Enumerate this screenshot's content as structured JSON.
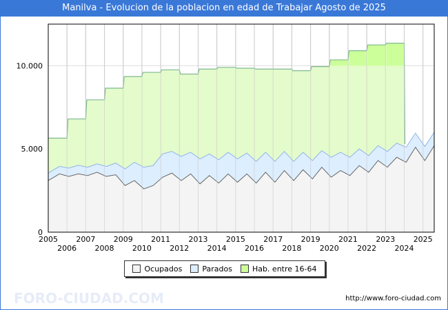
{
  "chart_data": {
    "type": "area",
    "title": "Manilva - Evolucion de la poblacion en edad de Trabajar Agosto de 2025",
    "xlabel": "",
    "ylabel": "",
    "ylim": [
      0,
      12500
    ],
    "xlim": [
      2005,
      2025.6
    ],
    "y_ticks": [
      0,
      5000,
      10000
    ],
    "y_tick_labels": [
      "0",
      "5.000",
      "10.000"
    ],
    "x_ticks": [
      2005,
      2006,
      2007,
      2008,
      2009,
      2010,
      2011,
      2012,
      2013,
      2014,
      2015,
      2016,
      2017,
      2018,
      2019,
      2020,
      2021,
      2022,
      2023,
      2024,
      2025
    ],
    "grid": true,
    "legend_position": "bottom",
    "series": [
      {
        "name": "Ocupados",
        "color": "#f4f4f4",
        "line": "#666666",
        "x": [
          2005.0,
          2005.6,
          2006.1,
          2006.6,
          2007.1,
          2007.6,
          2008.1,
          2008.6,
          2009.1,
          2009.6,
          2010.1,
          2010.6,
          2011.1,
          2011.6,
          2012.1,
          2012.6,
          2013.1,
          2013.6,
          2014.1,
          2014.6,
          2015.1,
          2015.6,
          2016.1,
          2016.6,
          2017.1,
          2017.6,
          2018.1,
          2018.6,
          2019.1,
          2019.6,
          2020.1,
          2020.6,
          2021.1,
          2021.6,
          2022.1,
          2022.6,
          2023.1,
          2023.6,
          2024.1,
          2024.6,
          2025.1,
          2025.6
        ],
        "values": [
          3100,
          3500,
          3350,
          3500,
          3400,
          3600,
          3350,
          3450,
          2800,
          3100,
          2600,
          2800,
          3300,
          3550,
          3100,
          3500,
          2900,
          3400,
          2950,
          3500,
          3000,
          3500,
          2950,
          3600,
          3000,
          3700,
          3100,
          3750,
          3200,
          3900,
          3300,
          3700,
          3400,
          4000,
          3600,
          4300,
          3900,
          4500,
          4200,
          5100,
          4300,
          5200
        ]
      },
      {
        "name": "Parados",
        "color": "#ddeeff",
        "line": "#8fb4e6",
        "values": [
          450,
          450,
          500,
          520,
          500,
          500,
          600,
          700,
          1000,
          1100,
          1300,
          1200,
          1400,
          1300,
          1450,
          1300,
          1500,
          1300,
          1400,
          1300,
          1400,
          1250,
          1300,
          1200,
          1250,
          1150,
          1150,
          1050,
          1100,
          1000,
          1200,
          1100,
          1100,
          1000,
          1000,
          900,
          950,
          850,
          900,
          850,
          850,
          800
        ]
      },
      {
        "name": "Hab. entre 16-64",
        "color": "#e4fbcc",
        "line": "#7fb890",
        "x": [
          2005,
          2006,
          2007,
          2008,
          2009,
          2010,
          2011,
          2012,
          2013,
          2014,
          2015,
          2016,
          2017,
          2018,
          2019,
          2020,
          2021,
          2022,
          2023
        ],
        "values": [
          5650,
          6800,
          7950,
          8650,
          9350,
          9600,
          9750,
          9500,
          9800,
          9900,
          9850,
          9800,
          9800,
          9700,
          9950,
          10350,
          10900,
          11250,
          11350
        ]
      }
    ]
  },
  "legend": {
    "ocupados": "Ocupados",
    "parados": "Parados",
    "hab": "Hab. entre 16-64"
  },
  "footer_url": "http://www.foro-ciudad.com",
  "watermark": "FORO-CIUDAD.COM"
}
